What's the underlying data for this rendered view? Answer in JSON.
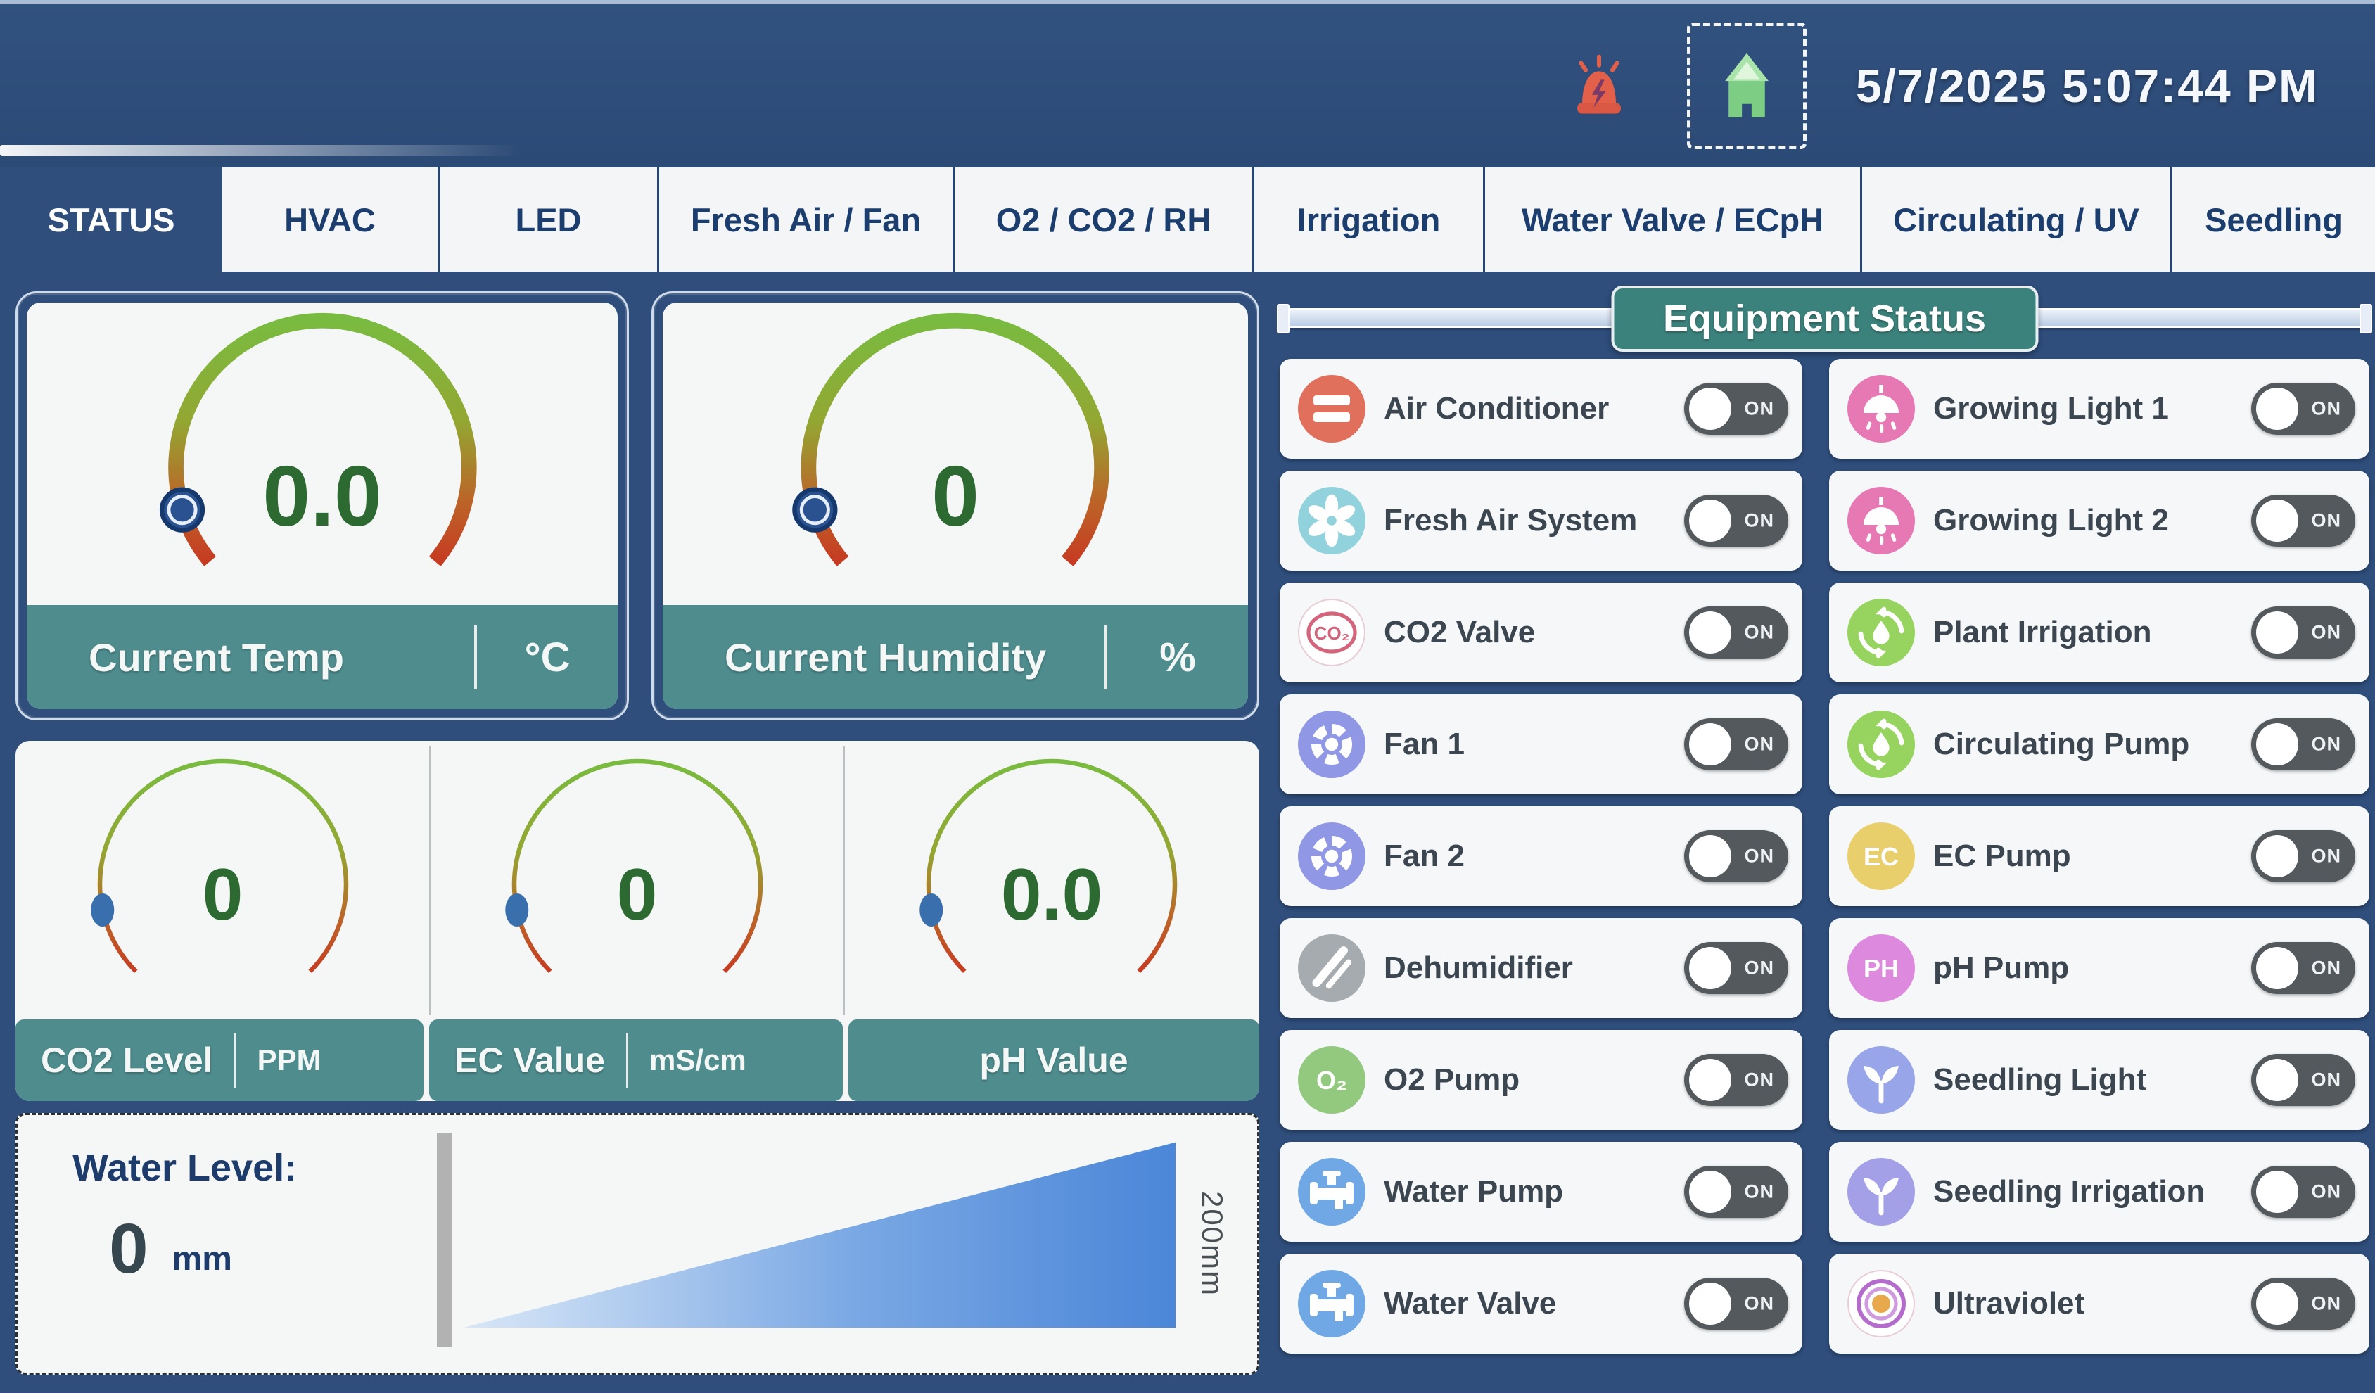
{
  "header": {
    "datetime": "5/7/2025 5:07:44 PM"
  },
  "tabs": [
    {
      "label": "STATUS",
      "active": true
    },
    {
      "label": "HVAC",
      "active": false
    },
    {
      "label": "LED",
      "active": false
    },
    {
      "label": "Fresh Air / Fan",
      "active": false
    },
    {
      "label": "O2 / CO2 / RH",
      "active": false
    },
    {
      "label": "Irrigation",
      "active": false
    },
    {
      "label": "Water Valve / ECpH",
      "active": false
    },
    {
      "label": "Circulating / UV",
      "active": false
    },
    {
      "label": "Seedling",
      "active": false
    }
  ],
  "gauges": {
    "temp": {
      "label": "Current Temp",
      "unit": "°C",
      "value": "0.0"
    },
    "humidity": {
      "label": "Current Humidity",
      "unit": "%",
      "value": "0"
    },
    "co2": {
      "label": "CO2 Level",
      "unit": "PPM",
      "value": "0"
    },
    "ec": {
      "label": "EC Value",
      "unit": "mS/cm",
      "value": "0"
    },
    "ph": {
      "label": "pH Value",
      "unit": "",
      "value": "0.0"
    }
  },
  "water_level": {
    "label": "Water Level:",
    "value": "0",
    "unit": "mm",
    "max_label": "200mm"
  },
  "equipment": {
    "title": "Equipment Status",
    "toggle_label": "ON",
    "left": [
      {
        "label": "Air Conditioner",
        "icon": "air-conditioner-icon",
        "glyph": "bars",
        "bg": "#e0705c"
      },
      {
        "label": "Fresh Air System",
        "icon": "fresh-air-icon",
        "glyph": "pinwheel",
        "bg": "#92d2dc"
      },
      {
        "label": "CO2 Valve",
        "icon": "co2-valve-icon",
        "glyph": "co2",
        "bg": "#ffffff",
        "fg": "#d4647c"
      },
      {
        "label": "Fan 1",
        "icon": "fan-icon",
        "glyph": "gear",
        "bg": "#9097e4"
      },
      {
        "label": "Fan 2",
        "icon": "fan-icon",
        "glyph": "gear",
        "bg": "#9097e4"
      },
      {
        "label": "Dehumidifier",
        "icon": "dehumidifier-icon",
        "glyph": "slashes",
        "bg": "#a6abb0"
      },
      {
        "label": "O2 Pump",
        "icon": "o2-pump-icon",
        "glyph": "text",
        "bg": "#93c97e",
        "text": "O₂"
      },
      {
        "label": "Water Pump",
        "icon": "water-pump-icon",
        "glyph": "faucet",
        "bg": "#70a8e6"
      },
      {
        "label": "Water Valve",
        "icon": "water-valve-icon",
        "glyph": "faucet",
        "bg": "#70a8e6"
      }
    ],
    "right": [
      {
        "label": "Growing Light 1",
        "icon": "growing-light-icon",
        "glyph": "lamp",
        "bg": "#e678b4"
      },
      {
        "label": "Growing Light 2",
        "icon": "growing-light-icon",
        "glyph": "lamp",
        "bg": "#e678b4"
      },
      {
        "label": "Plant Irrigation",
        "icon": "plant-irrigation-icon",
        "glyph": "cycle",
        "bg": "#96d35f"
      },
      {
        "label": "Circulating Pump",
        "icon": "circulating-pump-icon",
        "glyph": "cycle",
        "bg": "#96d35f"
      },
      {
        "label": "EC Pump",
        "icon": "ec-pump-icon",
        "glyph": "text",
        "bg": "#e9cf6b",
        "text": "EC"
      },
      {
        "label": "pH Pump",
        "icon": "ph-pump-icon",
        "glyph": "text",
        "bg": "#dd8ade",
        "text": "PH"
      },
      {
        "label": "Seedling Light",
        "icon": "seedling-light-icon",
        "glyph": "sprout",
        "bg": "#98a5e8"
      },
      {
        "label": "Seedling Irrigation",
        "icon": "seedling-irrigation-icon",
        "glyph": "sprout",
        "bg": "#a3a0e8"
      },
      {
        "label": "Ultraviolet",
        "icon": "ultraviolet-icon",
        "glyph": "rings",
        "bg": "#ffffff"
      }
    ]
  },
  "colors": {
    "background": "#2f4e7c",
    "card": "#f5f7f6",
    "teal_footer": "#4e8c8e",
    "badge_teal": "#3c827c",
    "gauge_value_green": "#2d6a31",
    "toggle_track": "#54595e",
    "navy_text": "#1d3c6b",
    "alarm_red": "#e2604a",
    "home_green": "#7ecd84",
    "water_triangle_blue": "#4b86d8"
  }
}
